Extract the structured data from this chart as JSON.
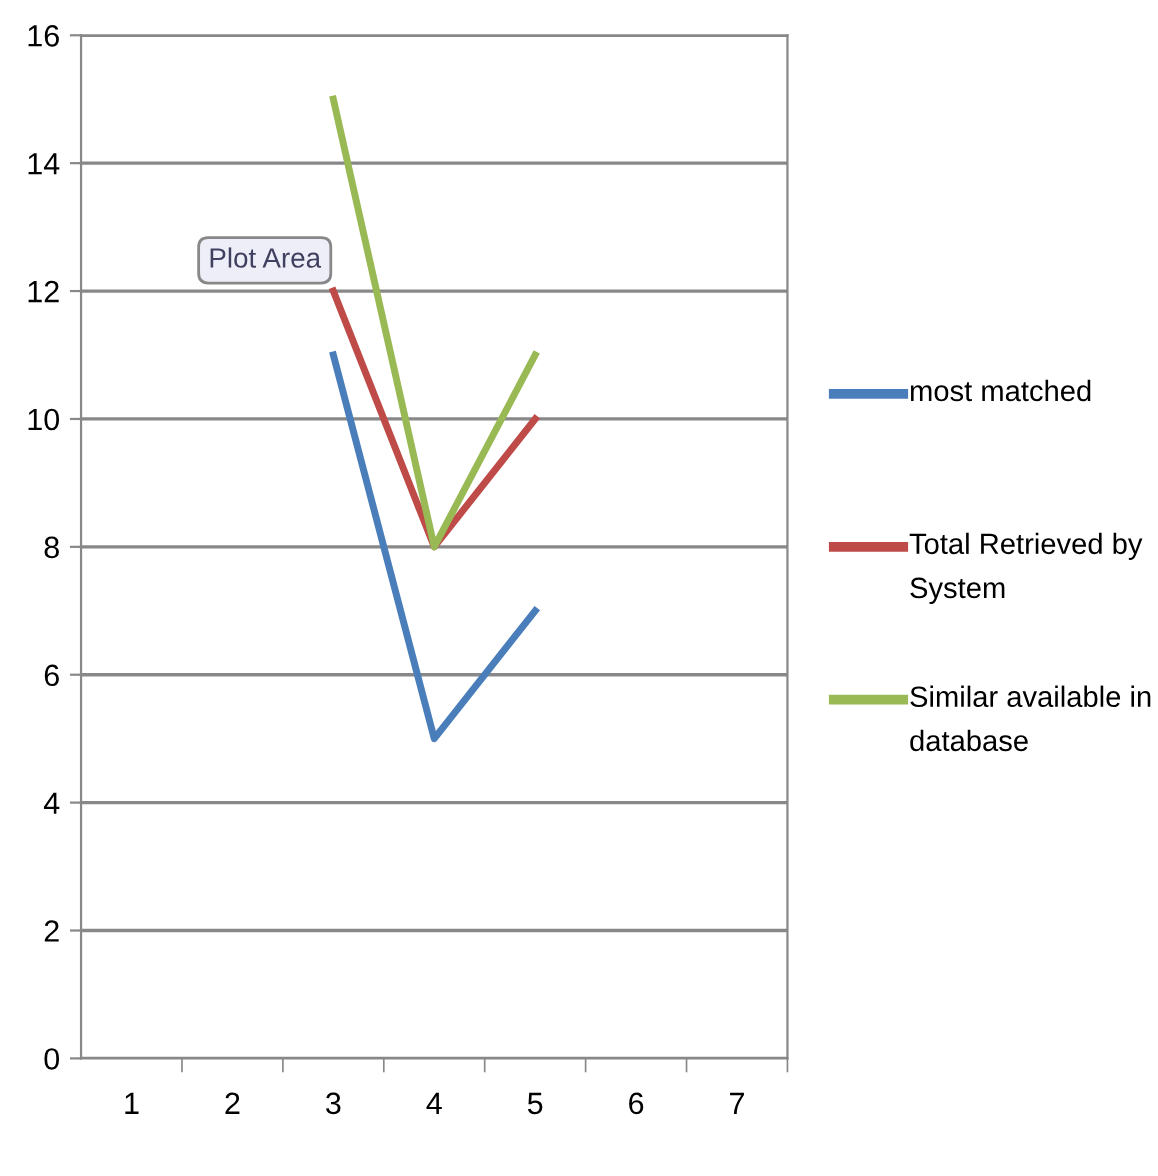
{
  "chart_data": {
    "type": "line",
    "categories": [
      "1",
      "2",
      "3",
      "4",
      "5",
      "6",
      "7"
    ],
    "series": [
      {
        "name": "most matched",
        "color": "#4a7ebb",
        "values": [
          null,
          null,
          11,
          5,
          7,
          null,
          null
        ]
      },
      {
        "name": "Total Retrieved by System",
        "color": "#be4b48",
        "values": [
          null,
          null,
          12,
          8,
          10,
          null,
          null
        ]
      },
      {
        "name": "Similar available in database",
        "color": "#98b954",
        "values": [
          null,
          null,
          15,
          8,
          11,
          null,
          null
        ]
      }
    ],
    "ylim": [
      0,
      16
    ],
    "yticks": [
      0,
      2,
      4,
      6,
      8,
      10,
      12,
      14,
      16
    ],
    "grid": "y",
    "legend": "right",
    "marker": "none",
    "line_style": "solid",
    "annotations": [
      "Plot Area"
    ]
  }
}
